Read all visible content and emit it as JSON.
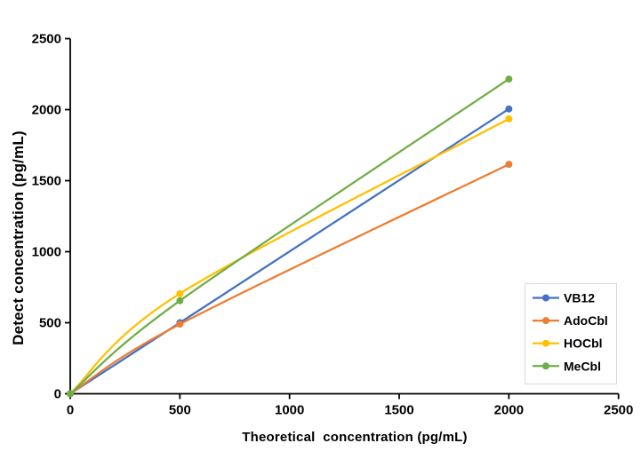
{
  "figure": {
    "background": "#ffffff"
  },
  "chart_data": {
    "type": "line",
    "title": "",
    "xlabel": "Theoretical  concentration (pg/mL)",
    "ylabel": "Detect concentration (pg/mL)",
    "x": [
      0,
      500,
      2000
    ],
    "series": [
      {
        "name": "VB12",
        "color": "#4472C4",
        "values": [
          0,
          500,
          2005
        ]
      },
      {
        "name": "AdoCbl",
        "color": "#ED7D31",
        "values": [
          0,
          490,
          1615
        ]
      },
      {
        "name": "HOCbl",
        "color": "#FFC000",
        "values": [
          0,
          705,
          1935
        ]
      },
      {
        "name": "MeCbl",
        "color": "#70AD47",
        "values": [
          0,
          655,
          2215
        ]
      }
    ],
    "xlim": [
      0,
      2500
    ],
    "ylim": [
      0,
      2500
    ],
    "x_ticks": [
      0,
      500,
      1000,
      1500,
      2000,
      2500
    ],
    "y_ticks": [
      0,
      500,
      1000,
      1500,
      2000,
      2500
    ],
    "grid": false,
    "smoothed": true,
    "marker": "circle",
    "axis_color": "#000000",
    "text_color": "#000000",
    "legend": {
      "position": "inside-right",
      "entries": [
        "VB12",
        "AdoCbl",
        "HOCbl",
        "MeCbl"
      ],
      "border_color": "#D9D9D9",
      "background": "#FFFFFF"
    }
  }
}
